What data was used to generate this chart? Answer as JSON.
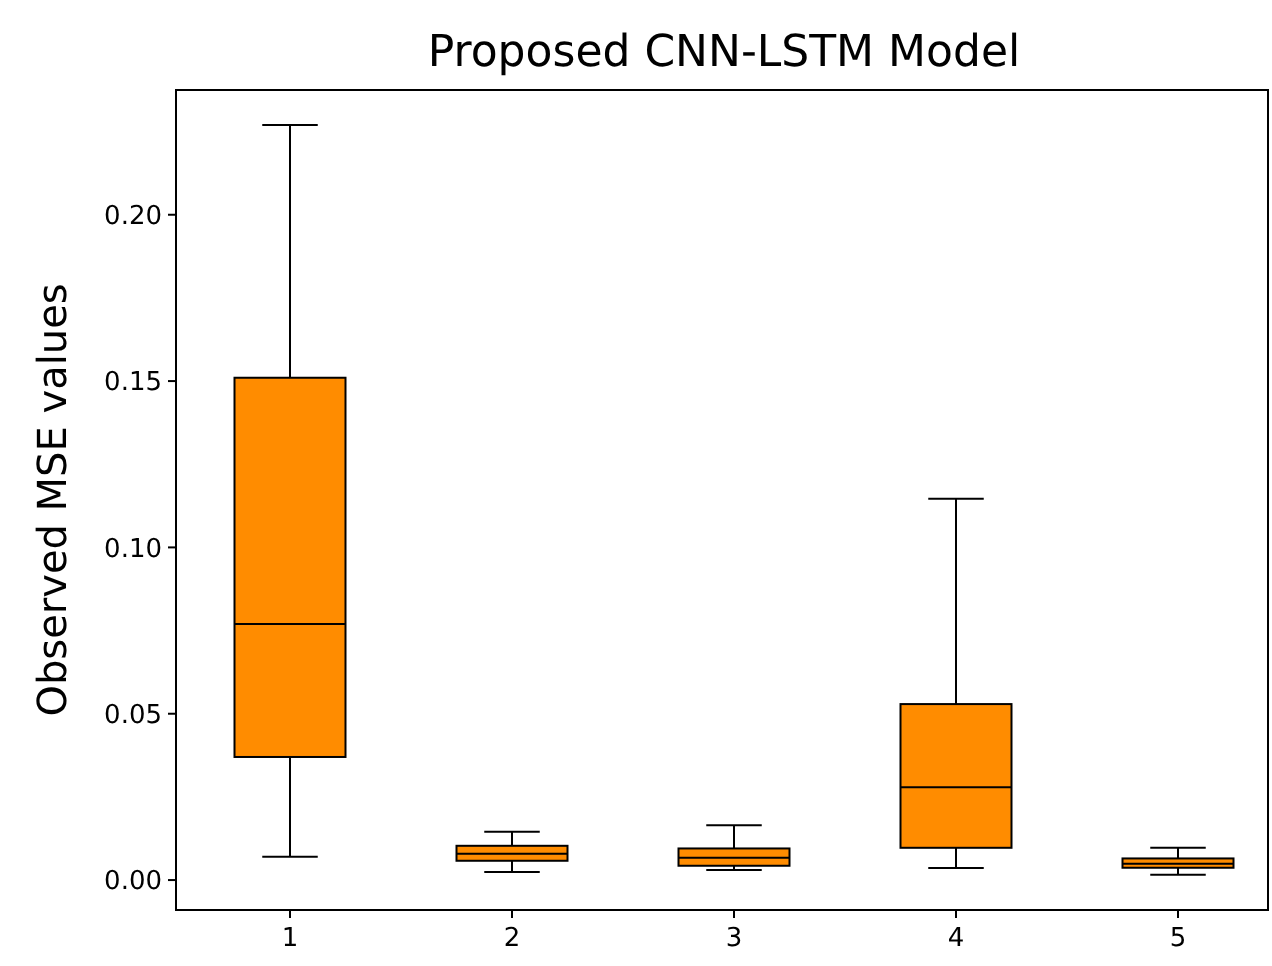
{
  "chart_data": {
    "type": "box",
    "title": "Proposed CNN-LSTM Model",
    "ylabel": "Observed MSE values",
    "categories": [
      "1",
      "2",
      "3",
      "4",
      "5"
    ],
    "color": "#ff8c00",
    "boxes": [
      {
        "low": 0.007,
        "q1": 0.037,
        "median": 0.077,
        "q3": 0.151,
        "high": 0.227
      },
      {
        "low": 0.0024,
        "q1": 0.0058,
        "median": 0.0079,
        "q3": 0.0103,
        "high": 0.0145
      },
      {
        "low": 0.003,
        "q1": 0.0043,
        "median": 0.0067,
        "q3": 0.0095,
        "high": 0.0165
      },
      {
        "low": 0.0036,
        "q1": 0.0097,
        "median": 0.0279,
        "q3": 0.0529,
        "high": 0.1146
      },
      {
        "low": 0.0016,
        "q1": 0.0037,
        "median": 0.0049,
        "q3": 0.0065,
        "high": 0.0097
      }
    ],
    "ylim": [
      -0.009,
      0.2375
    ],
    "yticks": [
      {
        "value": 0,
        "label": "0.00"
      },
      {
        "value": 0.05,
        "label": "0.05"
      },
      {
        "value": 0.1,
        "label": "0.10"
      },
      {
        "value": 0.15,
        "label": "0.15"
      },
      {
        "value": 0.2,
        "label": "0.20"
      }
    ]
  }
}
